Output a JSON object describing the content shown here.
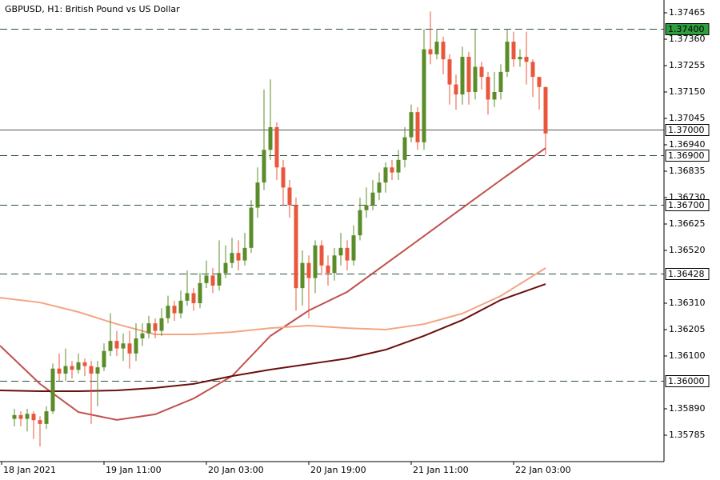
{
  "chart_data": {
    "type": "candlestick",
    "title": "GBPUSD, H1:  British Pound vs US Dollar",
    "up_color": "#5b8c2a",
    "down_color": "#e8573c",
    "open": [
      1.3585,
      1.35865,
      1.3585,
      1.3587,
      1.35845,
      1.3583,
      1.3588,
      1.3605,
      1.3603,
      1.3606,
      1.36045,
      1.36075,
      1.3606,
      1.3603,
      1.36055,
      1.3612,
      1.3616,
      1.3613,
      1.3615,
      1.3611,
      1.3617,
      1.3619,
      1.3623,
      1.362,
      1.3625,
      1.363,
      1.3627,
      1.3632,
      1.3635,
      1.3631,
      1.3639,
      1.3642,
      1.3638,
      1.3643,
      1.3647,
      1.3651,
      1.3648,
      1.3653,
      1.3669,
      1.3679,
      1.3692,
      1.3701,
      1.3685,
      1.3677,
      1.367,
      1.3637,
      1.3647,
      1.3641,
      1.3654,
      1.3646,
      1.3643,
      1.365,
      1.3653,
      1.3648,
      1.3658,
      1.3668,
      1.367,
      1.3675,
      1.3679,
      1.3685,
      1.3683,
      1.3688,
      1.3697,
      1.3707,
      1.3695,
      1.3732,
      1.373,
      1.3735,
      1.3728,
      1.3718,
      1.3714,
      1.3729,
      1.3715,
      1.3725,
      1.3721,
      1.3712,
      1.3715,
      1.3723,
      1.3735,
      1.3728,
      1.3729,
      1.3727,
      1.3721,
      1.3717
    ],
    "high": [
      1.3589,
      1.3588,
      1.3589,
      1.3588,
      1.3586,
      1.359,
      1.3607,
      1.3611,
      1.3613,
      1.3608,
      1.3611,
      1.3609,
      1.3608,
      1.3608,
      1.3615,
      1.3627,
      1.362,
      1.3619,
      1.362,
      1.3623,
      1.3623,
      1.3626,
      1.3625,
      1.3629,
      1.3634,
      1.3632,
      1.3636,
      1.3644,
      1.3637,
      1.3643,
      1.3648,
      1.3645,
      1.3656,
      1.3654,
      1.3657,
      1.3656,
      1.3659,
      1.3672,
      1.3685,
      1.3716,
      1.372,
      1.3703,
      1.3688,
      1.368,
      1.3673,
      1.3652,
      1.365,
      1.3656,
      1.3656,
      1.365,
      1.3653,
      1.3659,
      1.3656,
      1.3662,
      1.3673,
      1.3677,
      1.368,
      1.3683,
      1.3687,
      1.3688,
      1.3692,
      1.3701,
      1.371,
      1.3709,
      1.374,
      1.3747,
      1.374,
      1.3737,
      1.373,
      1.3722,
      1.3733,
      1.3731,
      1.374,
      1.3727,
      1.3723,
      1.3723,
      1.3726,
      1.374,
      1.3739,
      1.3732,
      1.3739,
      1.3728,
      1.3721,
      1.3717
    ],
    "low": [
      1.3582,
      1.3582,
      1.358,
      1.3577,
      1.3574,
      1.3581,
      1.3587,
      1.36,
      1.36,
      1.3601,
      1.3603,
      1.3602,
      1.3583,
      1.359,
      1.3604,
      1.361,
      1.361,
      1.3608,
      1.3605,
      1.3608,
      1.3614,
      1.3617,
      1.3617,
      1.3618,
      1.3623,
      1.3624,
      1.3625,
      1.363,
      1.3628,
      1.3629,
      1.3637,
      1.3635,
      1.3636,
      1.3641,
      1.3645,
      1.3644,
      1.3646,
      1.3651,
      1.3665,
      1.3676,
      1.3688,
      1.368,
      1.367,
      1.3665,
      1.3628,
      1.363,
      1.3625,
      1.3635,
      1.3642,
      1.3638,
      1.364,
      1.3646,
      1.3644,
      1.3646,
      1.3656,
      1.3665,
      1.3668,
      1.3672,
      1.3675,
      1.368,
      1.368,
      1.3685,
      1.3695,
      1.3692,
      1.3692,
      1.3726,
      1.3728,
      1.3722,
      1.371,
      1.3708,
      1.371,
      1.371,
      1.3712,
      1.3716,
      1.3706,
      1.3709,
      1.3712,
      1.3721,
      1.3725,
      1.3725,
      1.3718,
      1.3713,
      1.3708,
      1.369
    ],
    "close": [
      1.35865,
      1.3585,
      1.3587,
      1.35845,
      1.3583,
      1.3588,
      1.3605,
      1.3603,
      1.3606,
      1.36045,
      1.36075,
      1.3606,
      1.3603,
      1.36055,
      1.3612,
      1.3616,
      1.3613,
      1.3615,
      1.3611,
      1.3617,
      1.3619,
      1.3623,
      1.362,
      1.3625,
      1.363,
      1.3627,
      1.3632,
      1.3635,
      1.3631,
      1.3639,
      1.3642,
      1.3638,
      1.3643,
      1.3647,
      1.3651,
      1.3648,
      1.3653,
      1.3669,
      1.3679,
      1.3692,
      1.3701,
      1.3685,
      1.3677,
      1.367,
      1.3637,
      1.3647,
      1.3641,
      1.3654,
      1.3646,
      1.3643,
      1.365,
      1.3653,
      1.3648,
      1.3658,
      1.3668,
      1.367,
      1.3675,
      1.3679,
      1.3685,
      1.3683,
      1.3688,
      1.3697,
      1.3707,
      1.3695,
      1.3732,
      1.373,
      1.3735,
      1.3728,
      1.3718,
      1.3714,
      1.3729,
      1.3715,
      1.3725,
      1.3721,
      1.3712,
      1.3715,
      1.3723,
      1.3735,
      1.3728,
      1.3729,
      1.3727,
      1.3721,
      1.3717,
      1.36985
    ],
    "ma_x": [
      -2.25,
      4,
      10,
      16,
      22,
      28,
      34,
      40,
      46,
      52,
      58,
      64,
      70,
      76,
      83
    ],
    "ma": [
      {
        "color": "#c0504d",
        "values": [
          1.36141,
          1.35989,
          1.35877,
          1.35846,
          1.35868,
          1.35931,
          1.3602,
          1.3618,
          1.36281,
          1.36355,
          1.36466,
          1.36577,
          1.36689,
          1.368,
          1.36927
        ]
      },
      {
        "color": "#f4a582",
        "values": [
          1.36332,
          1.36313,
          1.36275,
          1.36227,
          1.36186,
          1.36186,
          1.36195,
          1.36211,
          1.36221,
          1.36211,
          1.36205,
          1.36227,
          1.36269,
          1.36339,
          1.3645
        ]
      },
      {
        "color": "#6b0f0f",
        "values": [
          1.35963,
          1.3596,
          1.3596,
          1.35963,
          1.35973,
          1.35989,
          1.3602,
          1.36046,
          1.36068,
          1.3609,
          1.36125,
          1.3618,
          1.36243,
          1.36323,
          1.36386
        ]
      }
    ],
    "levels": [
      {
        "value": 1.374,
        "label": "1.37400",
        "fill": "#2e9e3e",
        "dash": true
      },
      {
        "value": 1.37,
        "label": "1.37000",
        "fill": "#ffffff",
        "dash": false
      },
      {
        "value": 1.369,
        "label": "1.36900",
        "fill": "#ffffff",
        "dash": true
      },
      {
        "value": 1.367,
        "label": "1.36700",
        "fill": "#ffffff",
        "dash": true
      },
      {
        "value": 1.36428,
        "label": "1.36428",
        "fill": "#ffffff",
        "dash": true
      },
      {
        "value": 1.36,
        "label": "1.36000",
        "fill": "#ffffff",
        "dash": true
      }
    ],
    "ylim": [
      1.3568,
      1.375
    ],
    "yticks": [
      1.37465,
      {
        "value": 1.3736,
        "label": "1.37360"
      },
      1.37255,
      {
        "value": 1.3715,
        "label": "1.37150"
      },
      1.37045,
      {
        "value": 1.3694,
        "label": "1.36940"
      },
      1.36835,
      {
        "value": 1.3673,
        "label": "1.36730"
      },
      1.36625,
      {
        "value": 1.3652,
        "label": "1.36520"
      },
      {
        "value": 1.3631,
        "label": "1.36310"
      },
      1.36205,
      {
        "value": 1.361,
        "label": "1.36100"
      },
      {
        "value": 1.3589,
        "label": "1.35890"
      },
      1.35785
    ],
    "xlim": [
      -2.25,
      101.5
    ],
    "xticks": [
      {
        "value": -2,
        "label": "18 Jan 2021"
      },
      {
        "value": 14,
        "label": "19 Jan 11:00"
      },
      {
        "value": 30,
        "label": "20 Jan 03:00"
      },
      {
        "value": 46,
        "label": "20 Jan 19:00"
      },
      {
        "value": 62,
        "label": "21 Jan 11:00"
      },
      {
        "value": 78,
        "label": "22 Jan 03:00"
      }
    ]
  }
}
